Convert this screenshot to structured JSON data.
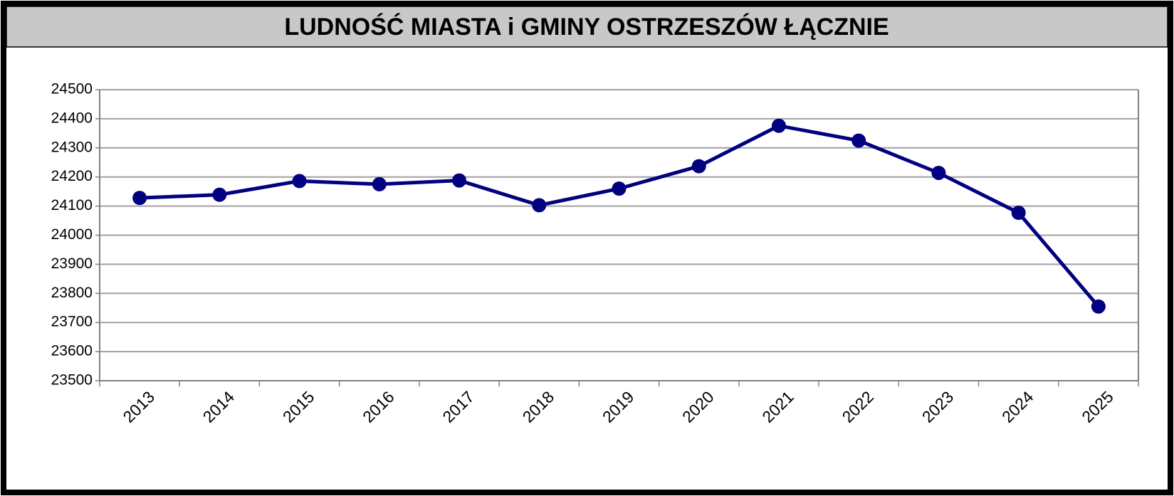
{
  "chart_data": {
    "type": "line",
    "title": "LUDNOŚĆ MIASTA i GMINY OSTRZESZÓW ŁĄCZNIE",
    "categories": [
      "2013",
      "2014",
      "2015",
      "2016",
      "2017",
      "2018",
      "2019",
      "2020",
      "2021",
      "2022",
      "2023",
      "2024",
      "2025"
    ],
    "series": [
      {
        "name": "Ludność",
        "color": "#000080",
        "values": [
          24128,
          24139,
          24186,
          24175,
          24188,
          24103,
          24160,
          24237,
          24376,
          24325,
          24214,
          24077,
          23755
        ]
      }
    ],
    "ylim": [
      23500,
      24500
    ],
    "yticks": [
      23500,
      23600,
      23700,
      23800,
      23900,
      24000,
      24100,
      24200,
      24300,
      24400,
      24500
    ],
    "grid": true
  }
}
